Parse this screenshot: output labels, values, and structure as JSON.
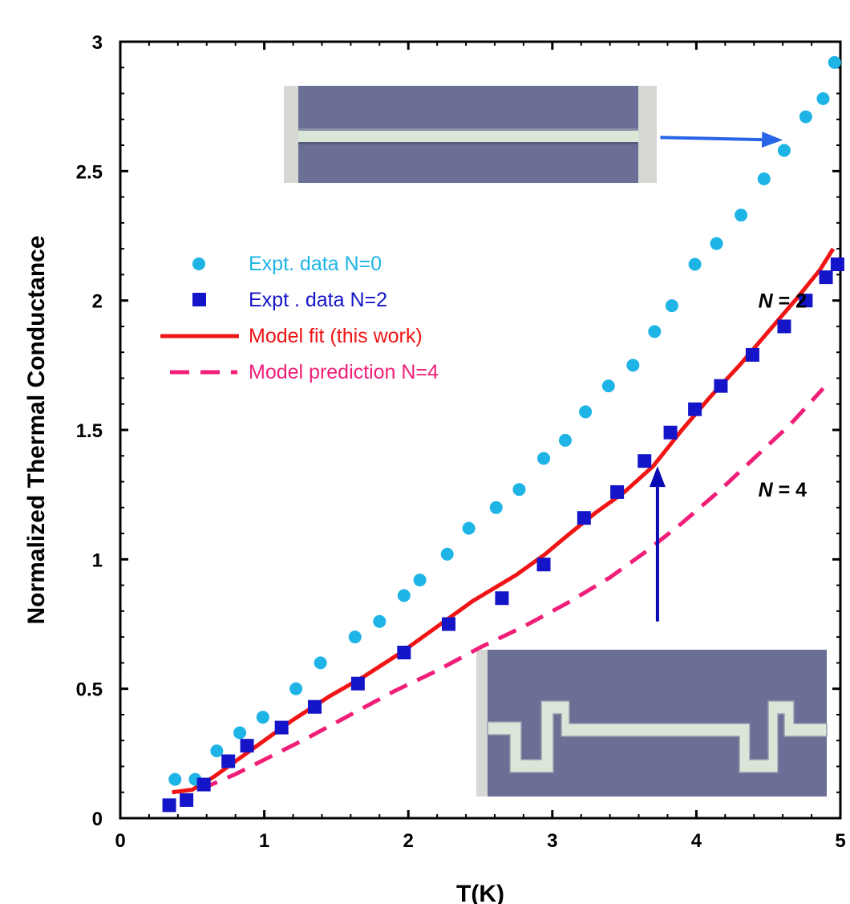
{
  "chart_data": {
    "type": "scatter",
    "xlabel": "T(K)",
    "ylabel": "Normalized Thermal Conductance",
    "xlim": [
      0,
      5
    ],
    "ylim": [
      0,
      3
    ],
    "x_ticks": [
      "0",
      "1",
      "2",
      "3",
      "4",
      "5"
    ],
    "y_ticks": [
      "0",
      "0.5",
      "1",
      "1.5",
      "2",
      "2.5",
      "3"
    ],
    "legend_position": "left",
    "series": [
      {
        "name": "Expt. data N=0",
        "kind": "scatter-circle",
        "color": "#1EB4E6",
        "x": [
          0.38,
          0.52,
          0.67,
          0.83,
          0.99,
          1.22,
          1.39,
          1.63,
          1.8,
          1.97,
          2.08,
          2.27,
          2.42,
          2.61,
          2.77,
          2.94,
          3.09,
          3.23,
          3.39,
          3.56,
          3.71,
          3.83,
          3.99,
          4.14,
          4.31,
          4.47,
          4.61,
          4.76,
          4.88,
          4.96
        ],
        "y": [
          0.15,
          0.15,
          0.26,
          0.33,
          0.39,
          0.5,
          0.6,
          0.7,
          0.76,
          0.86,
          0.92,
          1.02,
          1.12,
          1.2,
          1.27,
          1.39,
          1.46,
          1.57,
          1.67,
          1.75,
          1.88,
          1.98,
          2.14,
          2.22,
          2.33,
          2.47,
          2.58,
          2.71,
          2.78,
          2.92
        ]
      },
      {
        "name": "Expt . data N=2",
        "kind": "scatter-square",
        "color": "#1414C8",
        "x": [
          0.34,
          0.46,
          0.58,
          0.75,
          0.88,
          1.12,
          1.35,
          1.65,
          1.97,
          2.28,
          2.65,
          2.94,
          3.22,
          3.45,
          3.64,
          3.82,
          3.99,
          4.17,
          4.39,
          4.61,
          4.76,
          4.9,
          4.98
        ],
        "y": [
          0.05,
          0.07,
          0.13,
          0.22,
          0.28,
          0.35,
          0.43,
          0.52,
          0.64,
          0.75,
          0.85,
          0.98,
          1.16,
          1.26,
          1.38,
          1.49,
          1.58,
          1.67,
          1.79,
          1.9,
          2.0,
          2.09,
          2.14
        ]
      },
      {
        "name": "Model fit (this work)",
        "kind": "line-solid",
        "color": "#F01414",
        "x": [
          0.36,
          0.5,
          0.65,
          0.8,
          1.0,
          1.2,
          1.45,
          1.7,
          1.95,
          2.2,
          2.45,
          2.75,
          2.95,
          3.1,
          3.3,
          3.5,
          3.7,
          3.9,
          4.1,
          4.3,
          4.5,
          4.7,
          4.86,
          4.95
        ],
        "y": [
          0.1,
          0.11,
          0.16,
          0.22,
          0.3,
          0.38,
          0.47,
          0.55,
          0.64,
          0.74,
          0.84,
          0.94,
          1.02,
          1.09,
          1.18,
          1.26,
          1.36,
          1.5,
          1.63,
          1.75,
          1.88,
          2.01,
          2.12,
          2.2
        ]
      },
      {
        "name": "Model prediction N=4",
        "kind": "line-dashed",
        "color": "#F01E78",
        "x": [
          0.55,
          0.8,
          1.05,
          1.3,
          1.6,
          1.9,
          2.2,
          2.5,
          2.8,
          3.1,
          3.4,
          3.65,
          3.9,
          4.15,
          4.4,
          4.65,
          4.88
        ],
        "y": [
          0.11,
          0.17,
          0.24,
          0.31,
          0.4,
          0.49,
          0.57,
          0.66,
          0.74,
          0.83,
          0.93,
          1.03,
          1.14,
          1.26,
          1.39,
          1.52,
          1.66
        ]
      }
    ],
    "annotations": [
      {
        "text_n": "N",
        "text_rest": " = 2",
        "x": 4.43,
        "y": 2.0
      },
      {
        "text_n": "N",
        "text_rest": " = 4",
        "x": 4.43,
        "y": 1.27
      }
    ],
    "arrows": [
      {
        "from": [
          3.75,
          2.63
        ],
        "to": [
          4.6,
          2.62
        ],
        "color": "#2864E6"
      },
      {
        "from": [
          3.73,
          0.76
        ],
        "to": [
          3.73,
          1.36
        ],
        "color": "#0A0AB4"
      }
    ]
  }
}
